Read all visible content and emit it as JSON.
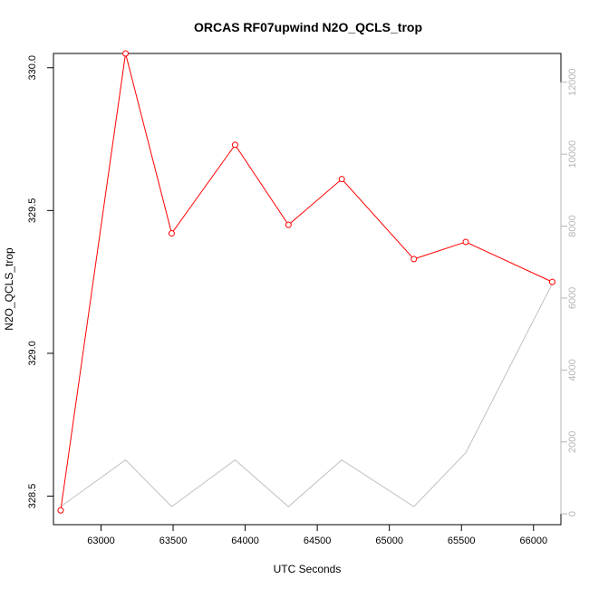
{
  "chart_data": {
    "type": "line",
    "title": "ORCAS RF07upwind N2O_QCLS_trop",
    "xlabel": "UTC Seconds",
    "ylabel": "N2O_QCLS_trop",
    "xlim": [
      62670,
      66190
    ],
    "ylim": [
      328.4,
      330.05
    ],
    "y2lim": [
      -300,
      12800
    ],
    "x_ticks": [
      63000,
      63500,
      64000,
      64500,
      65000,
      65500,
      66000
    ],
    "y_ticks": [
      328.5,
      329.0,
      329.5,
      330.0
    ],
    "y2_ticks": [
      0,
      2000,
      4000,
      6000,
      8000,
      10000,
      12000
    ],
    "x_tick_labels": [
      "63000",
      "63500",
      "64000",
      "64500",
      "65000",
      "65500",
      "66000"
    ],
    "y_tick_labels": [
      "328.5",
      "329.0",
      "329.5",
      "330.0"
    ],
    "y2_tick_labels": [
      "0",
      "2000",
      "4000",
      "6000",
      "8000",
      "10000",
      "12000"
    ],
    "series": [
      {
        "axis": "left",
        "color": "#ff0000",
        "markers": true,
        "x": [
          62720,
          63170,
          63490,
          63930,
          64300,
          64670,
          65170,
          65530,
          66130
        ],
        "y": [
          328.45,
          330.05,
          329.42,
          329.73,
          329.45,
          329.61,
          329.33,
          329.39,
          329.25
        ]
      },
      {
        "axis": "right",
        "color": "#c0c0c0",
        "markers": false,
        "x": [
          62720,
          63170,
          63490,
          63930,
          64300,
          64670,
          65170,
          65530,
          66130
        ],
        "y": [
          200,
          1500,
          200,
          1500,
          200,
          1500,
          200,
          1700,
          6400
        ]
      }
    ]
  }
}
